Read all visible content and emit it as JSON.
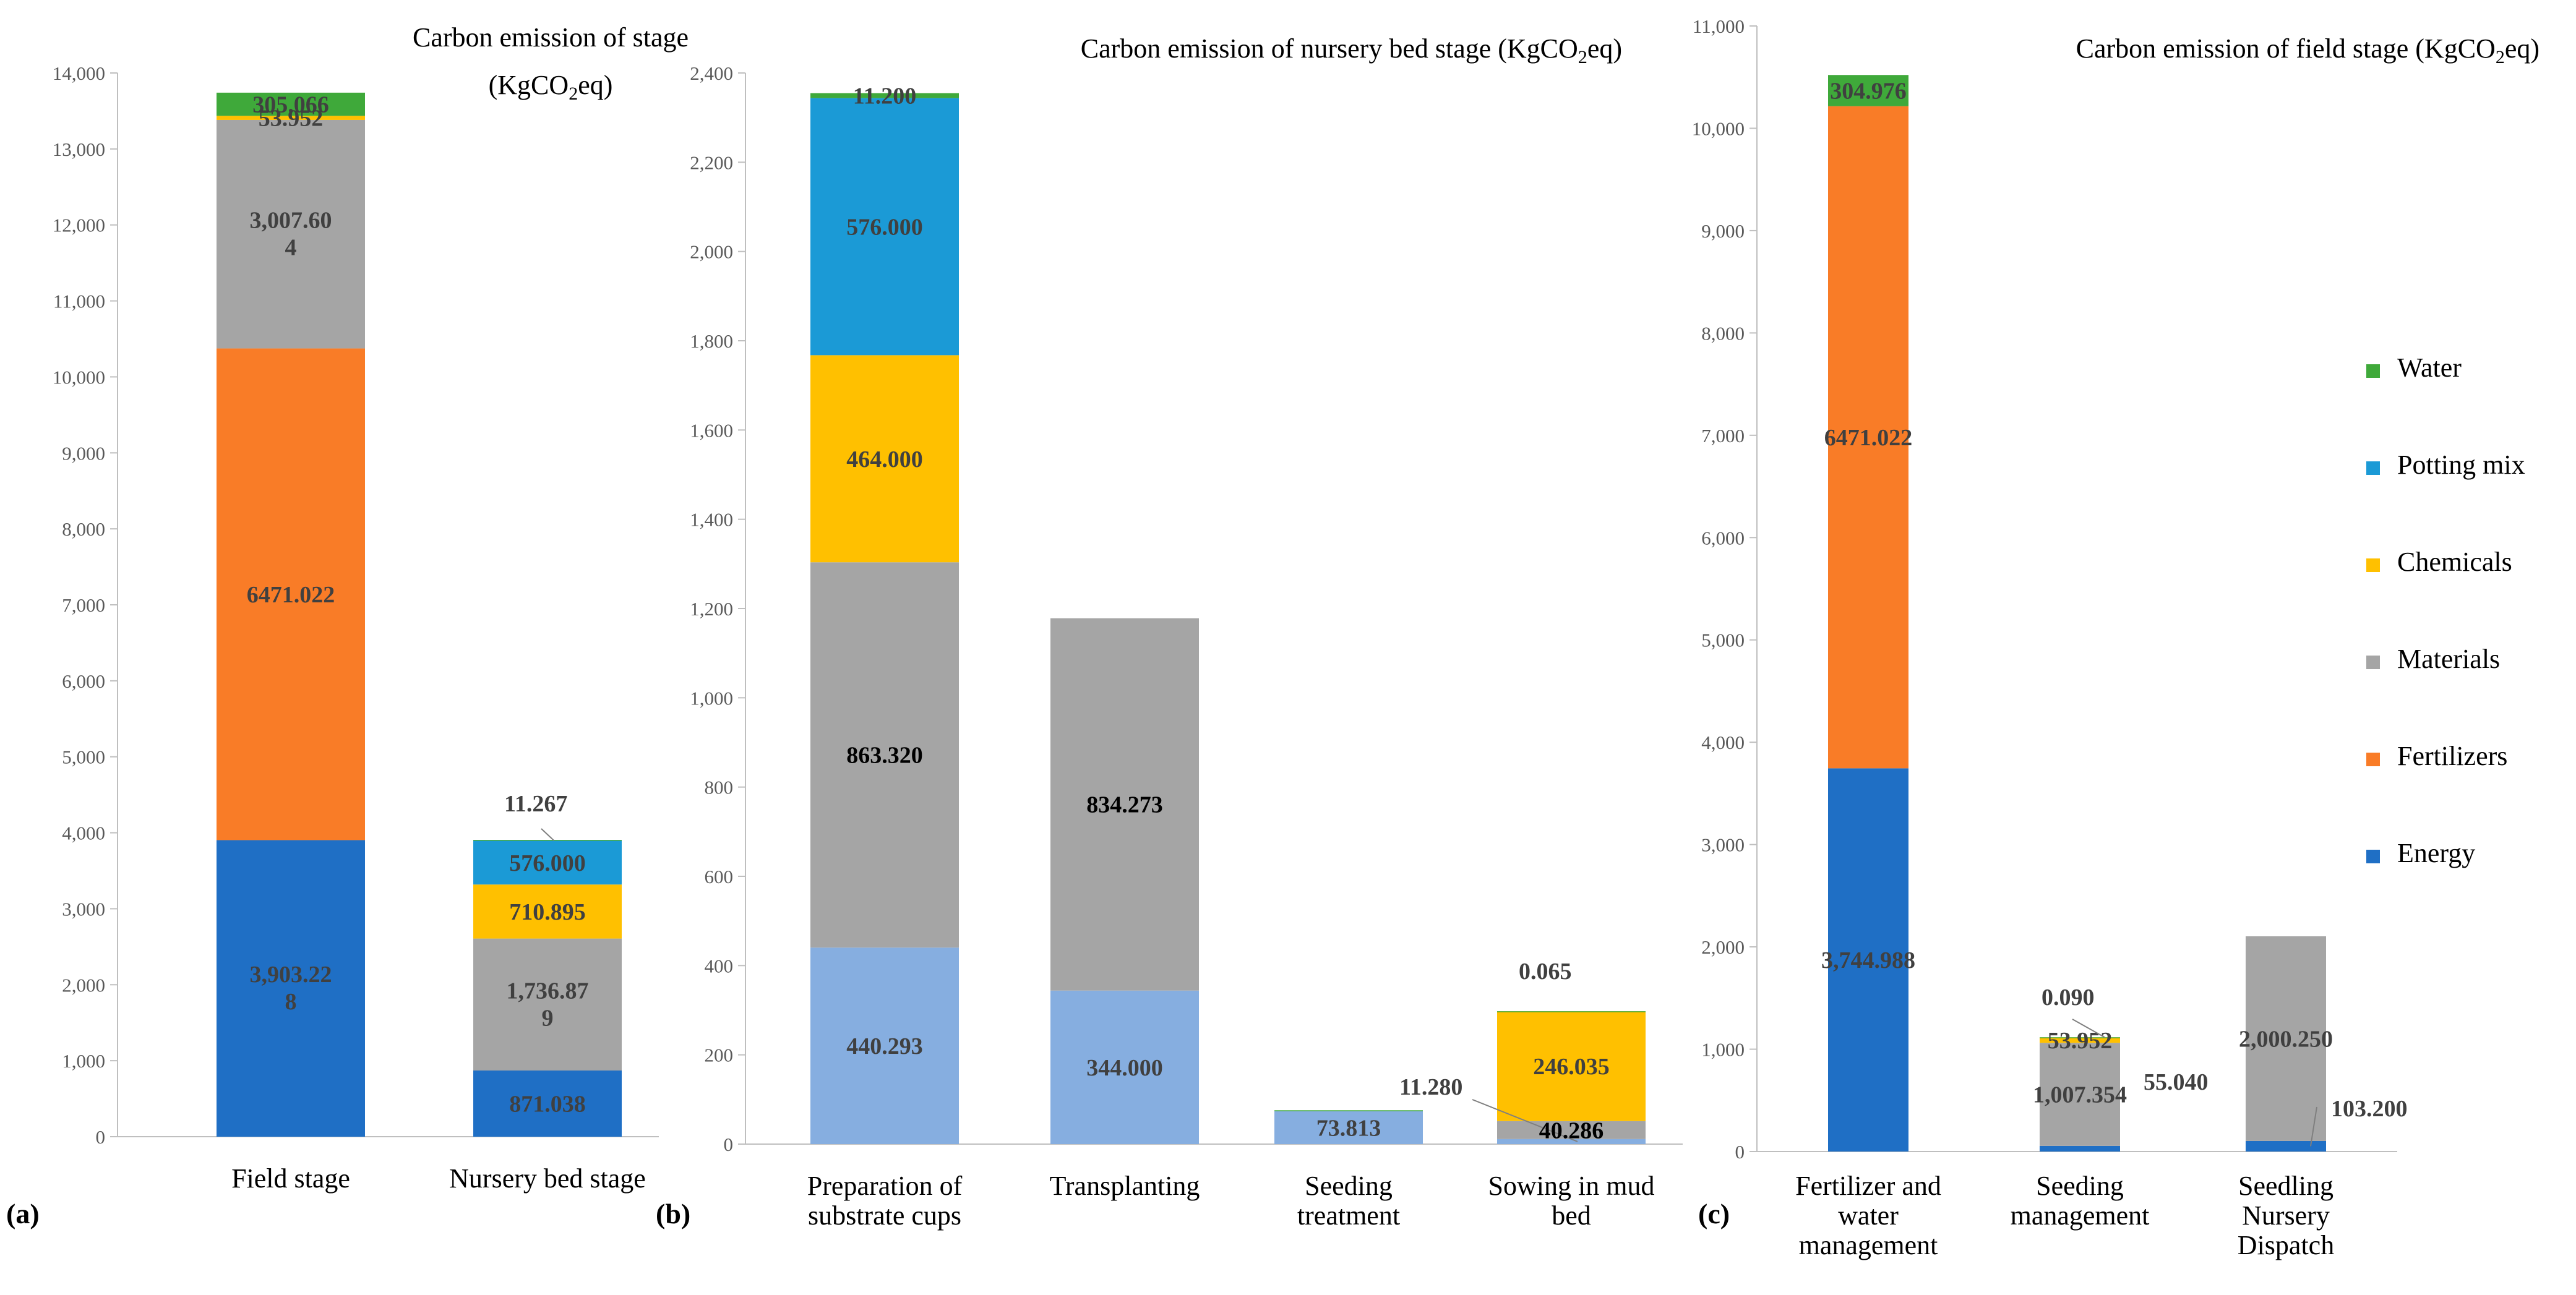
{
  "colors": {
    "Energy": "#1f6fc5",
    "EnergyLight": "#86aee0",
    "Fertilizers": "#f97c27",
    "Materials": "#a5a5a5",
    "Chemicals": "#ffc000",
    "Potting mix": "#1b9ad6",
    "Water": "#3fa93a"
  },
  "chart_data": [
    {
      "id": "a",
      "type": "bar",
      "stacked": true,
      "panel_label": "(a)",
      "title_line1": "Carbon emission of stage",
      "title_line2": "(KgCO2eq)",
      "categories": [
        "Field stage",
        "Nursery bed stage"
      ],
      "ylim": [
        0,
        14000
      ],
      "yticks": [
        "0",
        "1,000",
        "2,000",
        "3,000",
        "4,000",
        "5,000",
        "6,000",
        "7,000",
        "8,000",
        "9,000",
        "10,000",
        "11,000",
        "12,000",
        "13,000",
        "14,000"
      ],
      "series": [
        {
          "name": "Energy",
          "values": [
            3903.228,
            871.038
          ],
          "labels": [
            "3,903.22 8",
            "871.038"
          ]
        },
        {
          "name": "Fertilizers",
          "values": [
            6471.022,
            0
          ],
          "labels": [
            "6471.022",
            ""
          ]
        },
        {
          "name": "Materials",
          "values": [
            3007.604,
            1736.879
          ],
          "labels": [
            "3,007.60 4",
            "1,736.87 9"
          ]
        },
        {
          "name": "Chemicals",
          "values": [
            53.952,
            710.895
          ],
          "labels": [
            "53.952",
            "710.895"
          ]
        },
        {
          "name": "Potting mix",
          "values": [
            0,
            576.0
          ],
          "labels": [
            "",
            "576.000"
          ]
        },
        {
          "name": "Water",
          "values": [
            305.066,
            11.267
          ],
          "labels": [
            "305.066",
            "11.267"
          ]
        }
      ]
    },
    {
      "id": "b",
      "type": "bar",
      "stacked": true,
      "panel_label": "(b)",
      "title": "Carbon emission of nursery bed stage (KgCO2eq)",
      "categories": [
        "Preparation of substrate cups",
        "Transplanting",
        "Seeding treatment",
        "Sowing in mud bed"
      ],
      "ylim": [
        0,
        2400
      ],
      "yticks": [
        "0",
        "200",
        "400",
        "600",
        "800",
        "1,000",
        "1,200",
        "1,400",
        "1,600",
        "1,800",
        "2,000",
        "2,200",
        "2,400"
      ],
      "series": [
        {
          "name": "Energy",
          "values": [
            440.293,
            344.0,
            73.813,
            11.28
          ],
          "labels": [
            "440.293",
            "344.000",
            "73.813",
            "11.280"
          ]
        },
        {
          "name": "Materials",
          "values": [
            863.32,
            834.273,
            0,
            40.286
          ],
          "labels": [
            "863.320",
            "834.273",
            "",
            "40.286"
          ]
        },
        {
          "name": "Chemicals",
          "values": [
            464.0,
            0,
            0,
            246.035
          ],
          "labels": [
            "464.000",
            "",
            "",
            "246.035"
          ]
        },
        {
          "name": "Potting mix",
          "values": [
            576.0,
            0,
            0,
            0
          ],
          "labels": [
            "576.000",
            "",
            "",
            ""
          ]
        },
        {
          "name": "Water",
          "values": [
            11.2,
            0,
            2.0,
            0.065
          ],
          "labels": [
            "11.200",
            "",
            "",
            "0.065"
          ]
        }
      ]
    },
    {
      "id": "c",
      "type": "bar",
      "stacked": true,
      "panel_label": "(c)",
      "title": "Carbon emission of field stage (KgCO2eq)",
      "categories": [
        "Fertilizer and water management",
        "Seeding management",
        "Seedling Nursery Dispatch"
      ],
      "ylim": [
        0,
        11000
      ],
      "yticks": [
        "0",
        "1,000",
        "2,000",
        "3,000",
        "4,000",
        "5,000",
        "6,000",
        "7,000",
        "8,000",
        "9,000",
        "10,000",
        "11,000"
      ],
      "series": [
        {
          "name": "Energy",
          "values": [
            3744.988,
            55.04,
            103.2
          ],
          "labels": [
            "3,744.988",
            "55.040",
            "103.200"
          ]
        },
        {
          "name": "Fertilizers",
          "values": [
            6471.022,
            0,
            0
          ],
          "labels": [
            "6471.022",
            "",
            ""
          ]
        },
        {
          "name": "Materials",
          "values": [
            0,
            1007.354,
            2000.25
          ],
          "labels": [
            "",
            "1,007.354",
            "2,000.250"
          ]
        },
        {
          "name": "Chemicals",
          "values": [
            0,
            53.952,
            0
          ],
          "labels": [
            "",
            "53.952",
            ""
          ]
        },
        {
          "name": "Water",
          "values": [
            304.976,
            0.09,
            0
          ],
          "labels": [
            "304.976",
            "0.090",
            ""
          ]
        }
      ],
      "legend": [
        "Water",
        "Potting mix",
        "Chemicals",
        "Materials",
        "Fertilizers",
        "Energy"
      ]
    }
  ]
}
